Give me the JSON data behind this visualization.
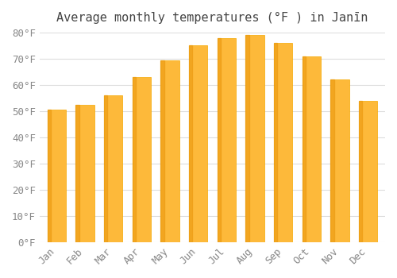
{
  "title": "Average monthly temperatures (°F ) in Janīn",
  "months": [
    "Jan",
    "Feb",
    "Mar",
    "Apr",
    "May",
    "Jun",
    "Jul",
    "Aug",
    "Sep",
    "Oct",
    "Nov",
    "Dec"
  ],
  "values": [
    50.5,
    52.5,
    56.0,
    63.0,
    69.5,
    75.0,
    78.0,
    79.0,
    76.0,
    71.0,
    62.0,
    54.0
  ],
  "bar_color_face": "#FDB93A",
  "bar_color_edge": "#F5A800",
  "ylim": [
    0,
    80
  ],
  "yticks": [
    0,
    10,
    20,
    30,
    40,
    50,
    60,
    70,
    80
  ],
  "ytick_labels": [
    "0°F",
    "10°F",
    "20°F",
    "30°F",
    "40°F",
    "50°F",
    "60°F",
    "70°F",
    "80°F"
  ],
  "background_color": "#FFFFFF",
  "grid_color": "#DDDDDD",
  "title_fontsize": 11,
  "tick_fontsize": 9,
  "bar_width": 0.65
}
